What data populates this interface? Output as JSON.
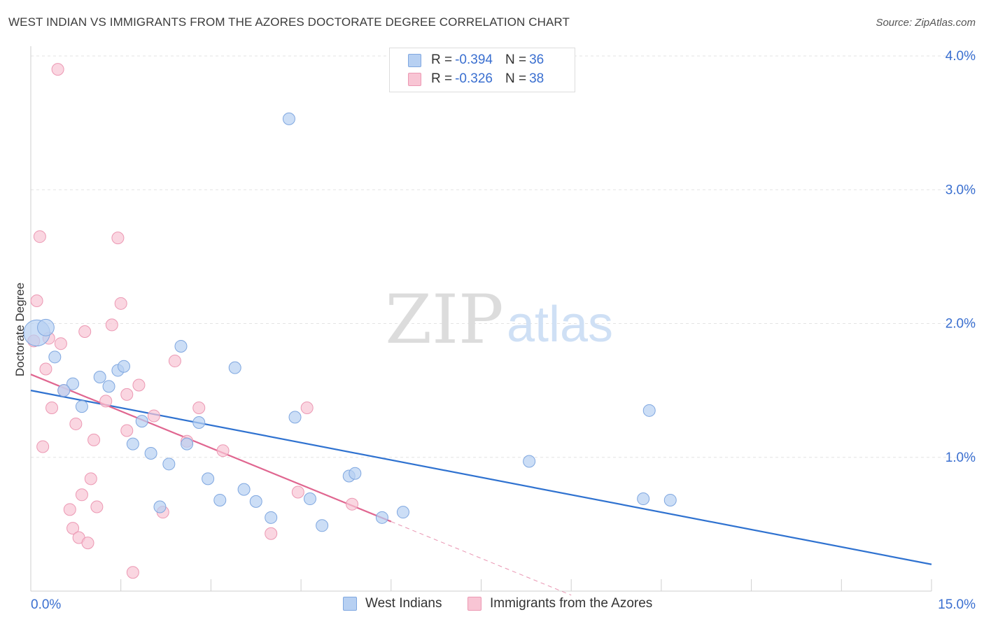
{
  "title": "WEST INDIAN VS IMMIGRANTS FROM THE AZORES DOCTORATE DEGREE CORRELATION CHART",
  "source": "Source: ZipAtlas.com",
  "watermark": {
    "zip": "ZIP",
    "atlas": "atlas"
  },
  "legend_top": {
    "rows": [
      {
        "r_label": "R = ",
        "r_value": "-0.394",
        "n_label": "N = ",
        "n_value": "36"
      },
      {
        "r_label": "R = ",
        "r_value": "-0.326",
        "n_label": "N = ",
        "n_value": "38"
      }
    ]
  },
  "legend_bottom": {
    "series1": "West Indians",
    "series2": "Immigrants from the Azores"
  },
  "colors": {
    "blue_fill": "#b7d0f2",
    "blue_stroke": "#7fa7e0",
    "blue_line": "#2f72d0",
    "pink_fill": "#f8c5d4",
    "pink_stroke": "#ec98b3",
    "pink_line": "#e06690",
    "axis_text": "#3a6fd0",
    "grid": "#e3e3e3"
  },
  "chart_data": {
    "type": "scatter",
    "title": "WEST INDIAN VS IMMIGRANTS FROM THE AZORES DOCTORATE DEGREE CORRELATION CHART",
    "xlabel": "",
    "ylabel": "Doctorate Degree",
    "xlim": [
      0,
      15
    ],
    "ylim": [
      0,
      4.0
    ],
    "x_tick_labels": [
      "0.0%",
      "15.0%"
    ],
    "y_ticks": [
      1.0,
      2.0,
      3.0,
      4.0
    ],
    "y_tick_labels": [
      "1.0%",
      "2.0%",
      "3.0%",
      "4.0%"
    ],
    "grid": "horizontal dashed",
    "legend_position": "top-center and bottom",
    "series": [
      {
        "name": "West Indians",
        "color": "#b7d0f2",
        "r": -0.394,
        "n": 36,
        "trend": {
          "x": [
            0.0,
            15.0
          ],
          "y": [
            1.5,
            0.2
          ]
        },
        "points": [
          {
            "x": 0.1,
            "y": 1.93,
            "s": 2.2
          },
          {
            "x": 0.25,
            "y": 1.97,
            "s": 1.4
          },
          {
            "x": 0.4,
            "y": 1.75,
            "s": 1
          },
          {
            "x": 0.7,
            "y": 1.55,
            "s": 1
          },
          {
            "x": 0.85,
            "y": 1.38,
            "s": 1
          },
          {
            "x": 0.55,
            "y": 1.5,
            "s": 1
          },
          {
            "x": 1.15,
            "y": 1.6,
            "s": 1
          },
          {
            "x": 1.3,
            "y": 1.53,
            "s": 1
          },
          {
            "x": 1.45,
            "y": 1.65,
            "s": 1
          },
          {
            "x": 1.55,
            "y": 1.68,
            "s": 1
          },
          {
            "x": 1.7,
            "y": 1.1,
            "s": 1
          },
          {
            "x": 1.85,
            "y": 1.27,
            "s": 1
          },
          {
            "x": 2.0,
            "y": 1.03,
            "s": 1
          },
          {
            "x": 2.15,
            "y": 0.63,
            "s": 1
          },
          {
            "x": 2.3,
            "y": 0.95,
            "s": 1
          },
          {
            "x": 2.5,
            "y": 1.83,
            "s": 1
          },
          {
            "x": 2.6,
            "y": 1.1,
            "s": 1
          },
          {
            "x": 2.8,
            "y": 1.26,
            "s": 1
          },
          {
            "x": 2.95,
            "y": 0.84,
            "s": 1
          },
          {
            "x": 3.15,
            "y": 0.68,
            "s": 1
          },
          {
            "x": 3.4,
            "y": 1.67,
            "s": 1
          },
          {
            "x": 3.55,
            "y": 0.76,
            "s": 1
          },
          {
            "x": 3.75,
            "y": 0.67,
            "s": 1
          },
          {
            "x": 4.0,
            "y": 0.55,
            "s": 1
          },
          {
            "x": 4.3,
            "y": 3.53,
            "s": 1
          },
          {
            "x": 4.4,
            "y": 1.3,
            "s": 1
          },
          {
            "x": 4.65,
            "y": 0.69,
            "s": 1
          },
          {
            "x": 4.85,
            "y": 0.49,
            "s": 1
          },
          {
            "x": 5.3,
            "y": 0.86,
            "s": 1
          },
          {
            "x": 5.4,
            "y": 0.88,
            "s": 1
          },
          {
            "x": 5.85,
            "y": 0.55,
            "s": 1
          },
          {
            "x": 6.2,
            "y": 0.59,
            "s": 1
          },
          {
            "x": 8.3,
            "y": 0.97,
            "s": 1
          },
          {
            "x": 10.2,
            "y": 0.69,
            "s": 1
          },
          {
            "x": 10.3,
            "y": 1.35,
            "s": 1
          },
          {
            "x": 10.65,
            "y": 0.68,
            "s": 1
          }
        ]
      },
      {
        "name": "Immigrants from the Azores",
        "color": "#f8c5d4",
        "r": -0.326,
        "n": 38,
        "trend": {
          "x": [
            0.0,
            6.0
          ],
          "y": [
            1.62,
            0.52
          ]
        },
        "trend_extension": {
          "x": [
            6.0,
            9.0
          ],
          "y": [
            0.52,
            -0.03
          ]
        },
        "points": [
          {
            "x": 0.05,
            "y": 1.87,
            "s": 1
          },
          {
            "x": 0.1,
            "y": 2.17,
            "s": 1
          },
          {
            "x": 0.15,
            "y": 2.65,
            "s": 1
          },
          {
            "x": 0.2,
            "y": 1.08,
            "s": 1
          },
          {
            "x": 0.25,
            "y": 1.66,
            "s": 1
          },
          {
            "x": 0.3,
            "y": 1.89,
            "s": 1
          },
          {
            "x": 0.35,
            "y": 1.37,
            "s": 1
          },
          {
            "x": 0.45,
            "y": 3.9,
            "s": 1
          },
          {
            "x": 0.5,
            "y": 1.85,
            "s": 1
          },
          {
            "x": 0.55,
            "y": 1.5,
            "s": 1
          },
          {
            "x": 0.65,
            "y": 0.61,
            "s": 1
          },
          {
            "x": 0.7,
            "y": 0.47,
            "s": 1
          },
          {
            "x": 0.75,
            "y": 1.25,
            "s": 1
          },
          {
            "x": 0.8,
            "y": 0.4,
            "s": 1
          },
          {
            "x": 0.85,
            "y": 0.72,
            "s": 1
          },
          {
            "x": 0.9,
            "y": 1.94,
            "s": 1
          },
          {
            "x": 0.95,
            "y": 0.36,
            "s": 1
          },
          {
            "x": 1.0,
            "y": 0.84,
            "s": 1
          },
          {
            "x": 1.05,
            "y": 1.13,
            "s": 1
          },
          {
            "x": 1.1,
            "y": 0.63,
            "s": 1
          },
          {
            "x": 1.25,
            "y": 1.42,
            "s": 1
          },
          {
            "x": 1.35,
            "y": 1.99,
            "s": 1
          },
          {
            "x": 1.45,
            "y": 2.64,
            "s": 1
          },
          {
            "x": 1.5,
            "y": 2.15,
            "s": 1
          },
          {
            "x": 1.6,
            "y": 1.47,
            "s": 1
          },
          {
            "x": 1.6,
            "y": 1.2,
            "s": 1
          },
          {
            "x": 1.7,
            "y": 0.14,
            "s": 1
          },
          {
            "x": 1.8,
            "y": 1.54,
            "s": 1
          },
          {
            "x": 2.05,
            "y": 1.31,
            "s": 1
          },
          {
            "x": 2.2,
            "y": 0.59,
            "s": 1
          },
          {
            "x": 2.4,
            "y": 1.72,
            "s": 1
          },
          {
            "x": 2.6,
            "y": 1.12,
            "s": 1
          },
          {
            "x": 2.8,
            "y": 1.37,
            "s": 1
          },
          {
            "x": 3.2,
            "y": 1.05,
            "s": 1
          },
          {
            "x": 4.0,
            "y": 0.43,
            "s": 1
          },
          {
            "x": 4.45,
            "y": 0.74,
            "s": 1
          },
          {
            "x": 4.6,
            "y": 1.37,
            "s": 1
          },
          {
            "x": 5.35,
            "y": 0.65,
            "s": 1
          }
        ]
      }
    ]
  }
}
